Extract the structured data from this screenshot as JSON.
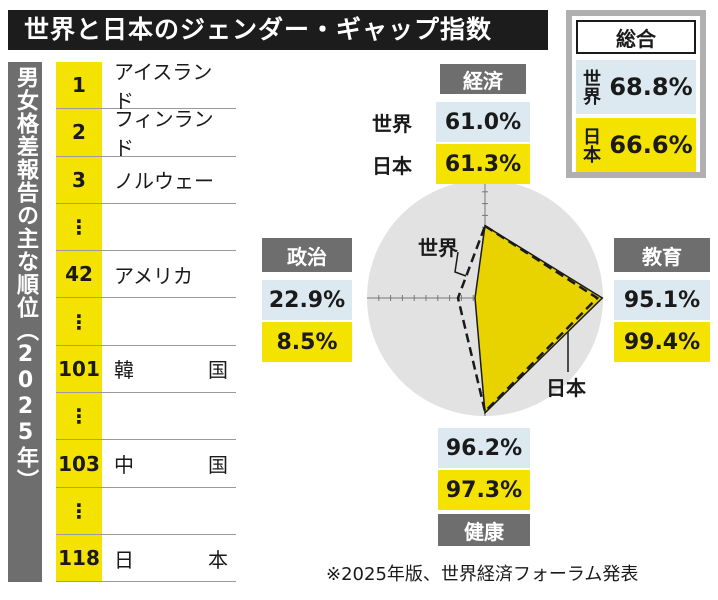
{
  "title": "世界と日本のジェンダー・ギャップ指数",
  "ranking": {
    "label": "男女格差報告の主な順位（2025年）",
    "rows": [
      {
        "rank": "1",
        "country": "アイスランド"
      },
      {
        "rank": "2",
        "country": "フィンランド"
      },
      {
        "rank": "3",
        "country": "ノルウェー"
      },
      {
        "rank": "⋮",
        "country": ""
      },
      {
        "rank": "42",
        "country": "アメリカ"
      },
      {
        "rank": "⋮",
        "country": ""
      },
      {
        "rank": "101",
        "country": "韓国"
      },
      {
        "rank": "⋮",
        "country": ""
      },
      {
        "rank": "103",
        "country": "中国"
      },
      {
        "rank": "⋮",
        "country": ""
      },
      {
        "rank": "118",
        "country": "日本"
      }
    ]
  },
  "summary": {
    "title": "総合",
    "world_label": "世界",
    "world_value": "68.8%",
    "japan_label": "日本",
    "japan_value": "66.6%"
  },
  "chart_data": {
    "type": "radar",
    "title": "世界と日本のジェンダー・ギャップ指数",
    "axes": [
      "経済",
      "教育",
      "健康",
      "政治"
    ],
    "series": [
      {
        "name": "世界",
        "values": [
          61.0,
          95.1,
          96.2,
          22.9
        ],
        "style": "dashed"
      },
      {
        "name": "日本",
        "values": [
          61.3,
          99.4,
          97.3,
          8.5
        ],
        "style": "filled"
      }
    ],
    "range": [
      0,
      100
    ],
    "labels": {
      "economy": {
        "name": "経済",
        "world": "61.0%",
        "japan": "61.3%"
      },
      "education": {
        "name": "教育",
        "world": "95.1%",
        "japan": "99.4%"
      },
      "health": {
        "name": "健康",
        "world": "96.2%",
        "japan": "97.3%"
      },
      "politics": {
        "name": "政治",
        "world": "22.9%",
        "japan": "8.5%"
      }
    },
    "world_series_label": "世界",
    "japan_series_label": "日本",
    "colors": {
      "japan_fill": "#e8d200",
      "world_line": "#1a1a1a",
      "circle": "#e2e2e2"
    }
  },
  "footnote": "※2025年版、世界経済フォーラム発表"
}
